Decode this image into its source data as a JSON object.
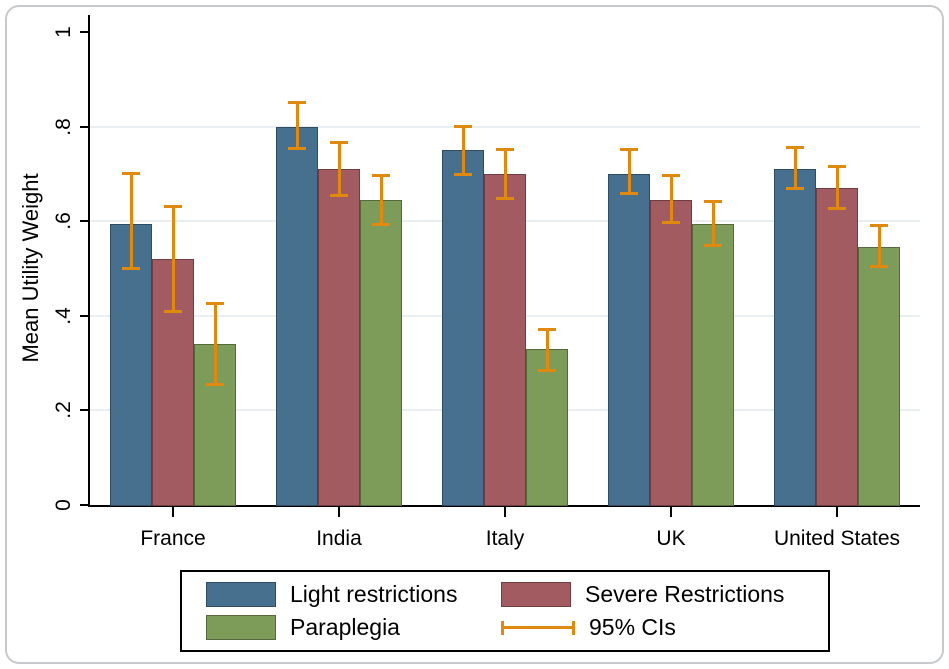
{
  "chart_data": {
    "type": "bar",
    "title": "",
    "xlabel": "",
    "ylabel": "Mean Utility Weight",
    "ylim": [
      0,
      1
    ],
    "ytick_labels": [
      "0",
      ".2",
      ".4",
      ".6",
      ".8",
      "1"
    ],
    "ytick_values": [
      0,
      0.2,
      0.4,
      0.6,
      0.8,
      1
    ],
    "gridline_values": [
      0.2,
      0.4,
      0.6,
      0.8
    ],
    "grid": "horizontal light gridlines",
    "legend_position": "bottom",
    "categories": [
      "France",
      "India",
      "Italy",
      "UK",
      "United States"
    ],
    "series": [
      {
        "name": "Light restrictions",
        "color": "#47708f",
        "border_color": "#2e4d64",
        "values": [
          0.595,
          0.8,
          0.75,
          0.7,
          0.71
        ],
        "ci_low": [
          0.5,
          0.755,
          0.7,
          0.66,
          0.67
        ],
        "ci_high": [
          0.7,
          0.85,
          0.8,
          0.75,
          0.755
        ]
      },
      {
        "name": "Severe Restrictions",
        "color": "#a35b62",
        "border_color": "#703d42",
        "values": [
          0.52,
          0.71,
          0.7,
          0.645,
          0.67
        ],
        "ci_low": [
          0.41,
          0.655,
          0.65,
          0.598,
          0.628
        ],
        "ci_high": [
          0.63,
          0.765,
          0.75,
          0.695,
          0.715
        ]
      },
      {
        "name": "Paraplegia",
        "color": "#7d9c5a",
        "border_color": "#55693c",
        "values": [
          0.34,
          0.645,
          0.33,
          0.595,
          0.545
        ],
        "ci_low": [
          0.255,
          0.595,
          0.285,
          0.55,
          0.505
        ],
        "ci_high": [
          0.425,
          0.695,
          0.37,
          0.64,
          0.59
        ]
      }
    ],
    "ci_color": "#e0890f",
    "legend": {
      "ci_label": "95% CIs"
    }
  }
}
